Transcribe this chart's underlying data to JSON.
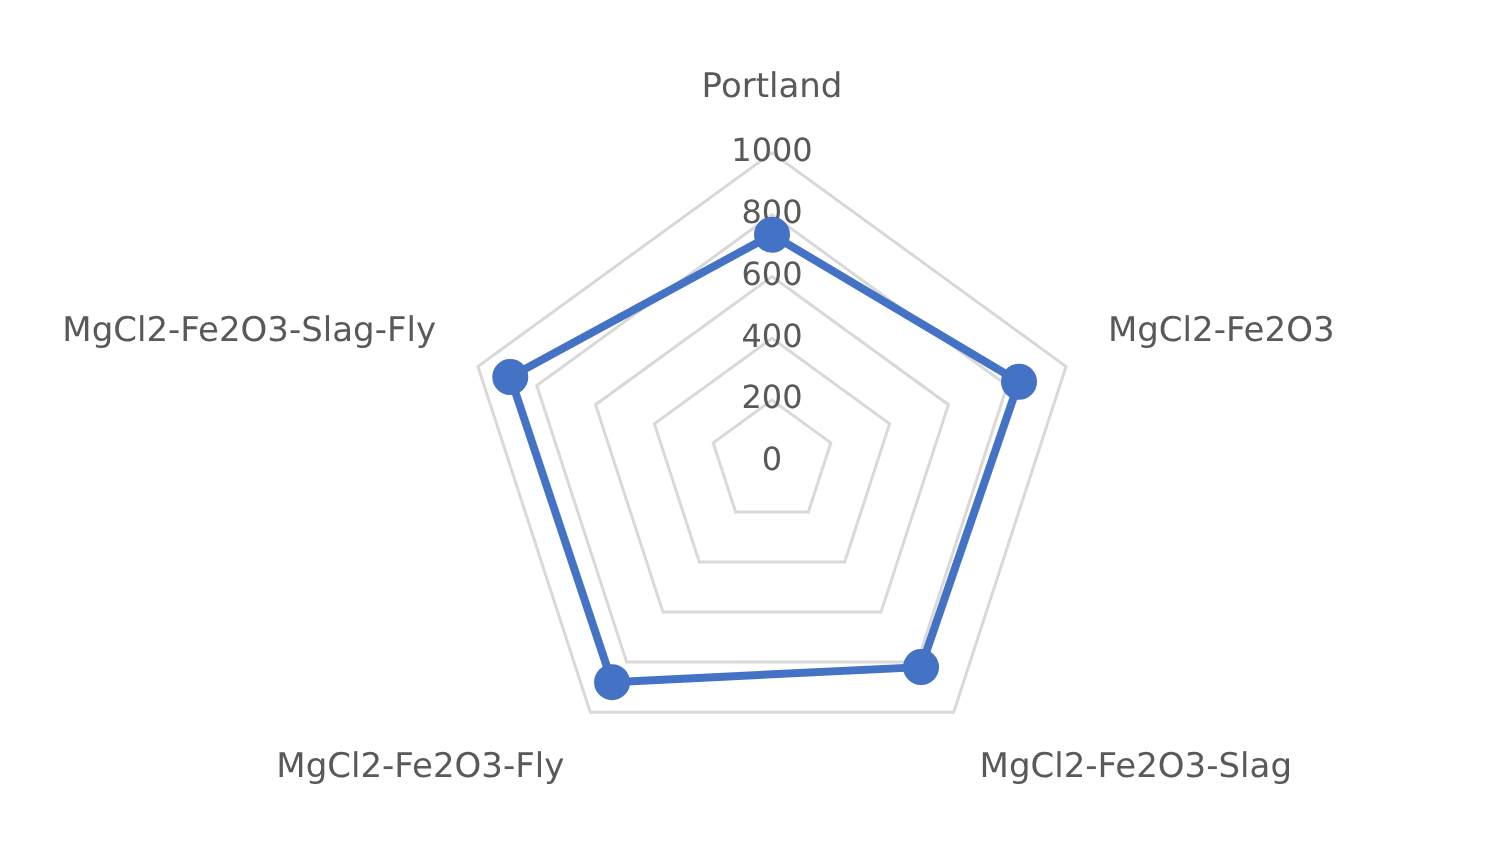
{
  "chart_data": {
    "type": "radar",
    "categories": [
      "Portland",
      "MgCl2-Fe2O3",
      "MgCl2-Fe2O3-Slag",
      "MgCl2-Fe2O3-Fly",
      "MgCl2-Fe2O3-Slag-Fly"
    ],
    "series": [
      {
        "color": "#4472c4",
        "values": [
          735,
          840,
          820,
          880,
          890
        ]
      }
    ],
    "ylim": [
      0,
      1000
    ],
    "yticks": [
      0,
      200,
      400,
      600,
      800,
      1000
    ],
    "grid": true,
    "marker": "circle",
    "line_style": "solid"
  }
}
